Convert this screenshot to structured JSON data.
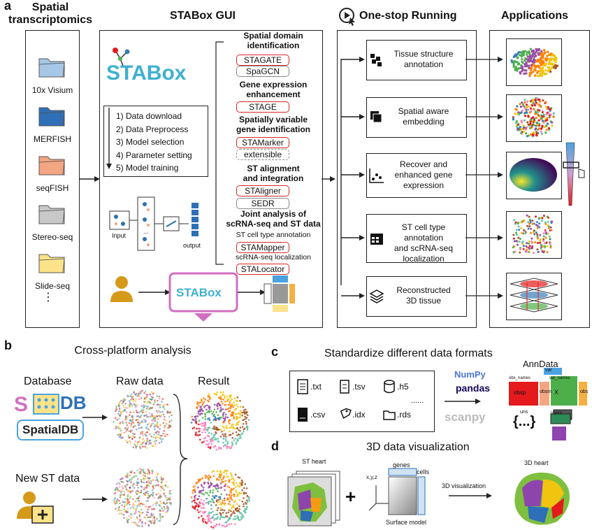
{
  "panel_a": {
    "letter": "a",
    "spatial_title": "Spatial\ntranscriptomics",
    "platforms": [
      "10x Visium",
      "MERFISH",
      "seqFISH",
      "Stereo-seq",
      "Slide-seq",
      "⋮"
    ],
    "platform_colors": [
      "#a7c7e7",
      "#2e6fb7",
      "#f4a582",
      "#c8c8c8",
      "#fce38a"
    ],
    "gui_title": "STABox GUI",
    "logo_text": "STABox",
    "steps": [
      "1) Data download",
      "2) Data Preprocess",
      "3) Model selection",
      "4) Parameter setting",
      "5) Model training"
    ],
    "input_label": "Input",
    "output_label": "output",
    "dots": "...",
    "categories": {
      "domain_title": "Spatial domain\nidentification",
      "domain_tools": [
        "STAGATE",
        "SpaGCN"
      ],
      "gene_title": "Gene expression\nenhancement",
      "gene_tools": [
        "STAGE"
      ],
      "svg_title": "Spatially variable\ngene identification",
      "svg_tools": [
        "STAMarker",
        "extensible"
      ],
      "align_title": "ST alignment\nand integration",
      "align_tools": [
        "STAligner",
        "SEDR"
      ],
      "joint_title": "Joint analysis of\nscRNA-seq and ST data",
      "joint_sub1": "ST cell type annotation",
      "joint_tool1": "STAMapper",
      "joint_sub2": "scRNA-seq localization",
      "joint_tool2": "STALocator"
    },
    "running_title": "One-stop Running",
    "running_items": [
      "Tissue structure\nannotation",
      "Spatial aware\nembedding",
      "Recover and\nenhanced gene\nexpression",
      "ST cell type annotation\nand scRNA-seq\nlocalization",
      "Reconstructed\n3D tissue"
    ],
    "applications_title": "Applications"
  },
  "panel_b": {
    "letter": "b",
    "title": "Cross-platform analysis",
    "database_label": "Database",
    "db_logo": "DB",
    "spatialdb": "SpatialDB",
    "raw_label": "Raw data",
    "result_label": "Result",
    "new_label": "New ST data"
  },
  "panel_c": {
    "letter": "c",
    "title": "Standardize different data formats",
    "formats": [
      ".txt",
      ".tsv",
      ".h5",
      ".csv",
      ".idx",
      ".rds"
    ],
    "more": "......",
    "libs": [
      "NumPy",
      "pandas",
      "scanpy"
    ],
    "anndata_title": "AnnData",
    "anndata_parts": [
      "obsp",
      "obsm",
      "X",
      "obs",
      "var",
      "uns",
      "layers"
    ],
    "anndata_small": [
      "obs_names",
      "var_names"
    ],
    "braces": "{...}"
  },
  "panel_d": {
    "letter": "d",
    "title": "3D data visualization",
    "st_heart": "ST heart",
    "plus": "+",
    "axes": "x,y,z",
    "genes": "genes",
    "cells": "cells",
    "surface": "Surface model",
    "arrow_label": "3D visualization",
    "heart_3d": "3D heart"
  }
}
